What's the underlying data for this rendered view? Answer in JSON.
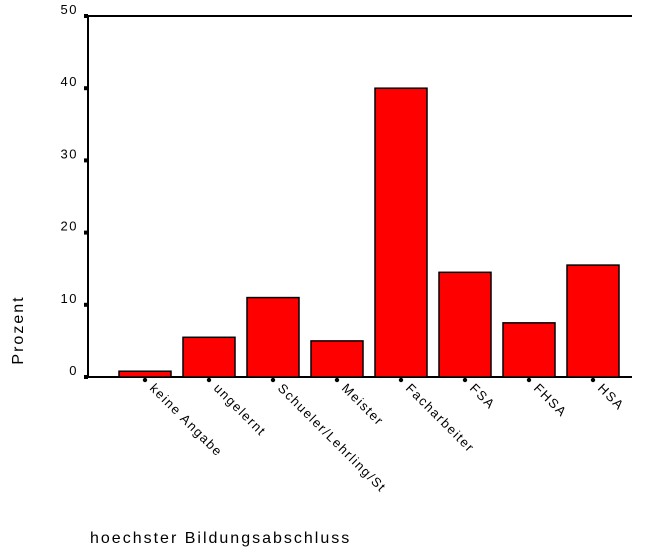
{
  "chart_data": {
    "type": "bar",
    "categories": [
      "keine Angabe",
      "ungelernt",
      "Schueler/Lehrling/St",
      "Meister",
      "Facharbeiter",
      "FSA",
      "FHSA",
      "HSA"
    ],
    "values": [
      0.8,
      5.5,
      11.0,
      5.0,
      40.0,
      14.5,
      7.5,
      15.5
    ],
    "color": "#ff0000",
    "ylim": [
      0,
      50
    ],
    "yticks": [
      0,
      10,
      20,
      30,
      40,
      50
    ],
    "y_label": "Prozent",
    "x_label": "hoechster Bildungsabschluss"
  }
}
